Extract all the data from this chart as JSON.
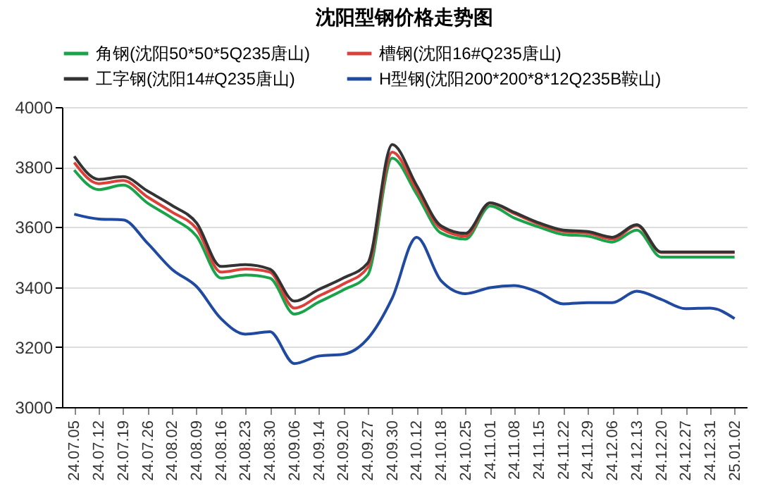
{
  "chart_data": {
    "type": "line",
    "title": "沈阳型钢价格走势图",
    "categories": [
      "24.07.05",
      "24.07.12",
      "24.07.19",
      "24.07.26",
      "24.08.02",
      "24.08.09",
      "24.08.16",
      "24.08.23",
      "24.08.30",
      "24.09.06",
      "24.09.14",
      "24.09.20",
      "24.09.27",
      "24.09.30",
      "24.10.12",
      "24.10.18",
      "24.10.25",
      "24.11.01",
      "24.11.08",
      "24.11.15",
      "24.11.22",
      "24.11.29",
      "24.12.06",
      "24.12.13",
      "24.12.20",
      "24.12.27",
      "24.12.31",
      "25.01.02"
    ],
    "series": [
      {
        "name": "角钢(沈阳50*50*5Q235唐山)",
        "color": "#1aa34a",
        "values": [
          3790,
          3725,
          3740,
          3680,
          3630,
          3570,
          3430,
          3440,
          3430,
          3310,
          3350,
          3390,
          3440,
          3830,
          3710,
          3580,
          3560,
          3670,
          3630,
          3600,
          3575,
          3570,
          3550,
          3590,
          3500,
          3500,
          3500,
          3500
        ]
      },
      {
        "name": "槽钢(沈阳16#Q235唐山)",
        "color": "#d9413a",
        "values": [
          3815,
          3745,
          3755,
          3700,
          3650,
          3595,
          3450,
          3460,
          3450,
          3330,
          3370,
          3410,
          3465,
          3850,
          3725,
          3595,
          3570,
          3680,
          3645,
          3610,
          3585,
          3580,
          3560,
          3605,
          3515,
          3515,
          3515,
          3515
        ]
      },
      {
        "name": "工字钢(沈阳14#Q235唐山)",
        "color": "#333333",
        "values": [
          3836,
          3759,
          3768,
          3720,
          3672,
          3614,
          3469,
          3475,
          3460,
          3353,
          3392,
          3430,
          3480,
          3875,
          3739,
          3604,
          3579,
          3681,
          3649,
          3614,
          3590,
          3585,
          3566,
          3608,
          3517,
          3517,
          3517,
          3517
        ]
      },
      {
        "name": "H型钢(沈阳200*200*8*12Q235B鞍山)",
        "color": "#1f4aa0",
        "values": [
          3643,
          3627,
          3624,
          3546,
          3459,
          3402,
          3295,
          3243,
          3251,
          3145,
          3170,
          3176,
          3228,
          3363,
          3566,
          3421,
          3378,
          3398,
          3405,
          3382,
          3344,
          3348,
          3348,
          3386,
          3359,
          3328,
          3330,
          3295
        ]
      }
    ],
    "ylim": [
      3000,
      4000
    ],
    "yticks": [
      3000,
      3200,
      3400,
      3600,
      3800,
      4000
    ],
    "grid": "y",
    "legend": "top",
    "marker": "none",
    "line_style": "solid"
  }
}
